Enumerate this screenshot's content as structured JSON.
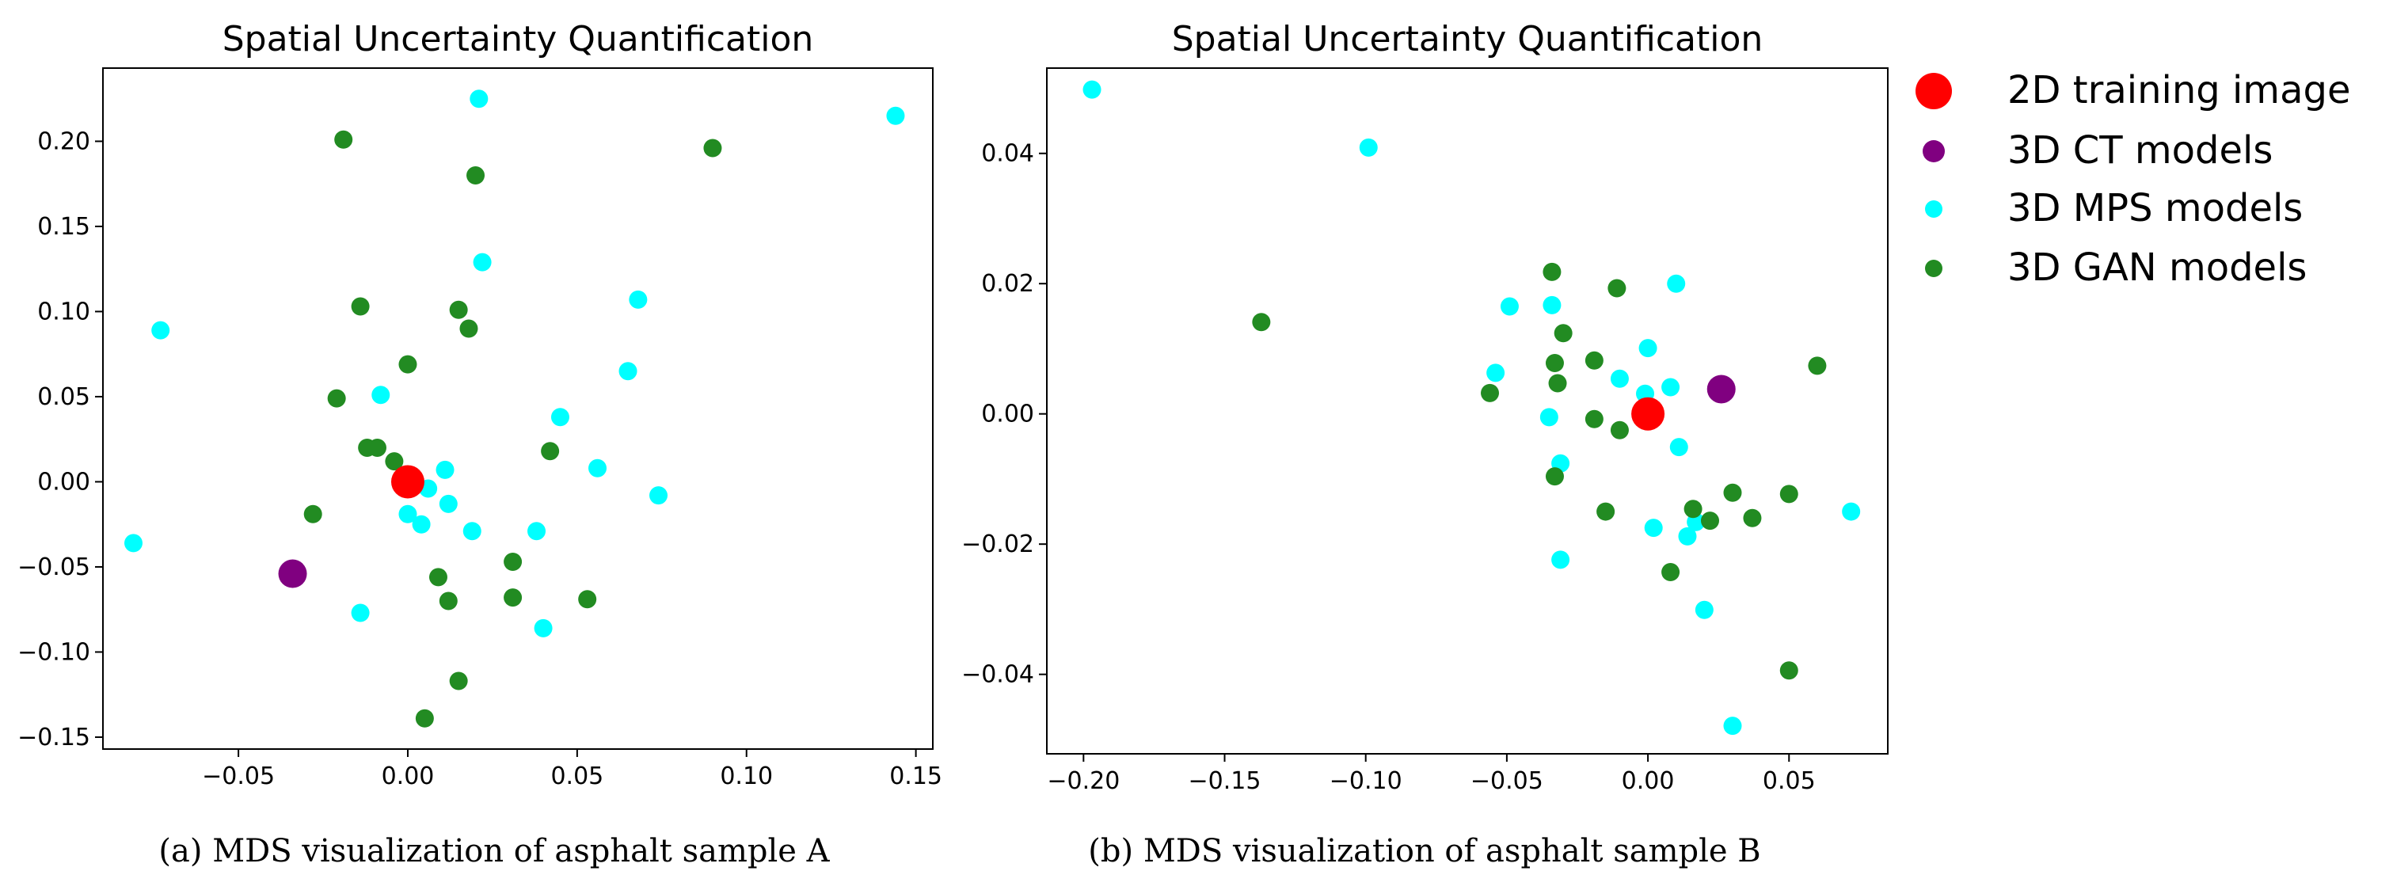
{
  "legend": [
    {
      "label": "2D training image",
      "color": "#ff0000",
      "size": "large"
    },
    {
      "label": "3D CT models",
      "color": "#800080",
      "size": "medium"
    },
    {
      "label": "3D MPS models",
      "color": "#00ffff",
      "size": "small"
    },
    {
      "label": "3D GAN models",
      "color": "#228b22",
      "size": "small"
    }
  ],
  "chart_data": [
    {
      "type": "scatter",
      "title": "Spatial Uncertainty Quantification",
      "caption": "(a) MDS visualization of asphalt sample A",
      "xlim": [
        -0.09,
        0.155
      ],
      "ylim": [
        -0.157,
        0.243
      ],
      "xticks": [
        "−0.05",
        "0.00",
        "0.05",
        "0.10",
        "0.15"
      ],
      "xtick_values": [
        -0.05,
        0.0,
        0.05,
        0.1,
        0.15
      ],
      "yticks": [
        "−0.15",
        "−0.10",
        "−0.05",
        "0.00",
        "0.05",
        "0.10",
        "0.15",
        "0.20"
      ],
      "ytick_values": [
        -0.15,
        -0.1,
        -0.05,
        0.0,
        0.05,
        0.1,
        0.15,
        0.2
      ],
      "series": [
        {
          "name": "2D training image",
          "color": "#ff0000",
          "points": [
            [
              0.0,
              0.0
            ]
          ]
        },
        {
          "name": "3D CT models",
          "color": "#800080",
          "points": [
            [
              -0.034,
              -0.054
            ]
          ]
        },
        {
          "name": "3D MPS models",
          "color": "#00ffff",
          "points": [
            [
              0.021,
              0.225
            ],
            [
              0.144,
              0.215
            ],
            [
              0.022,
              0.129
            ],
            [
              0.068,
              0.107
            ],
            [
              -0.073,
              0.089
            ],
            [
              0.065,
              0.065
            ],
            [
              -0.008,
              0.051
            ],
            [
              0.045,
              0.038
            ],
            [
              0.056,
              0.008
            ],
            [
              0.011,
              0.007
            ],
            [
              0.006,
              -0.004
            ],
            [
              0.074,
              -0.008
            ],
            [
              0.012,
              -0.013
            ],
            [
              0.0,
              -0.019
            ],
            [
              0.004,
              -0.025
            ],
            [
              0.019,
              -0.029
            ],
            [
              0.038,
              -0.029
            ],
            [
              -0.081,
              -0.036
            ],
            [
              -0.014,
              -0.077
            ],
            [
              0.04,
              -0.086
            ]
          ]
        },
        {
          "name": "3D GAN models",
          "color": "#228b22",
          "points": [
            [
              -0.019,
              0.201
            ],
            [
              0.09,
              0.196
            ],
            [
              0.02,
              0.18
            ],
            [
              -0.014,
              0.103
            ],
            [
              0.015,
              0.101
            ],
            [
              0.018,
              0.09
            ],
            [
              0.0,
              0.069
            ],
            [
              -0.021,
              0.049
            ],
            [
              -0.012,
              0.02
            ],
            [
              -0.009,
              0.02
            ],
            [
              -0.004,
              0.012
            ],
            [
              0.042,
              0.018
            ],
            [
              -0.028,
              -0.019
            ],
            [
              0.031,
              -0.047
            ],
            [
              0.009,
              -0.056
            ],
            [
              0.031,
              -0.068
            ],
            [
              0.012,
              -0.07
            ],
            [
              0.053,
              -0.069
            ],
            [
              0.015,
              -0.117
            ],
            [
              0.005,
              -0.139
            ]
          ]
        }
      ]
    },
    {
      "type": "scatter",
      "title": "Spatial Uncertainty Quantification",
      "caption": "(b) MDS visualization of asphalt sample B",
      "xlim": [
        -0.213,
        0.085
      ],
      "ylim": [
        -0.0522,
        0.0531
      ],
      "xticks": [
        "−0.20",
        "−0.15",
        "−0.10",
        "−0.05",
        "0.00",
        "0.05"
      ],
      "xtick_values": [
        -0.2,
        -0.15,
        -0.1,
        -0.05,
        0.0,
        0.05
      ],
      "yticks": [
        "−0.04",
        "−0.02",
        "0.00",
        "0.02",
        "0.04"
      ],
      "ytick_values": [
        -0.04,
        -0.02,
        0.0,
        0.02,
        0.04
      ],
      "series": [
        {
          "name": "2D training image",
          "color": "#ff0000",
          "points": [
            [
              0.0,
              0.0
            ]
          ]
        },
        {
          "name": "3D CT models",
          "color": "#800080",
          "points": [
            [
              0.026,
              0.0038
            ]
          ]
        },
        {
          "name": "3D MPS models",
          "color": "#00ffff",
          "points": [
            [
              -0.197,
              0.0498
            ],
            [
              -0.099,
              0.0409
            ],
            [
              0.01,
              0.02
            ],
            [
              -0.049,
              0.0165
            ],
            [
              -0.034,
              0.0167
            ],
            [
              0.0,
              0.0101
            ],
            [
              -0.054,
              0.0063
            ],
            [
              -0.01,
              0.0054
            ],
            [
              0.008,
              0.0041
            ],
            [
              -0.001,
              0.0031
            ],
            [
              -0.035,
              -0.0005
            ],
            [
              0.011,
              -0.0051
            ],
            [
              -0.031,
              -0.0076
            ],
            [
              0.002,
              -0.0175
            ],
            [
              0.017,
              -0.0166
            ],
            [
              0.014,
              -0.0188
            ],
            [
              -0.031,
              -0.0224
            ],
            [
              0.02,
              -0.0301
            ],
            [
              0.072,
              -0.015
            ],
            [
              0.03,
              -0.0479
            ]
          ]
        },
        {
          "name": "3D GAN models",
          "color": "#228b22",
          "points": [
            [
              -0.137,
              0.0141
            ],
            [
              -0.034,
              0.0218
            ],
            [
              -0.011,
              0.0193
            ],
            [
              -0.03,
              0.0124
            ],
            [
              -0.019,
              0.0082
            ],
            [
              -0.033,
              0.0078
            ],
            [
              -0.032,
              0.0047
            ],
            [
              -0.056,
              0.0032
            ],
            [
              -0.019,
              -0.0008
            ],
            [
              -0.01,
              -0.0025
            ],
            [
              0.06,
              0.0074
            ],
            [
              -0.033,
              -0.0096
            ],
            [
              -0.015,
              -0.015
            ],
            [
              0.016,
              -0.0146
            ],
            [
              0.03,
              -0.0121
            ],
            [
              0.05,
              -0.0123
            ],
            [
              0.022,
              -0.0164
            ],
            [
              0.037,
              -0.016
            ],
            [
              0.008,
              -0.0243
            ],
            [
              0.05,
              -0.0394
            ]
          ]
        }
      ]
    }
  ]
}
